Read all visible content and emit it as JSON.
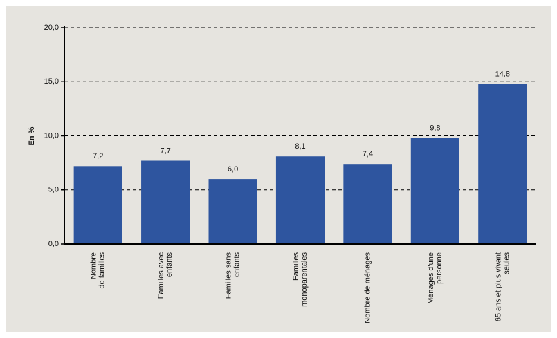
{
  "chart_data": {
    "type": "bar",
    "y_axis_label": "En %",
    "categories": [
      "Nombre\nde familles",
      "Familles avec\nenfants",
      "Familles sans\nenfants",
      "Familles\nmonoparentales",
      "Nombre de ménages",
      "Ménages d'une\npersonne",
      "65 ans et plus vivant\nseules"
    ],
    "values": [
      7.2,
      7.7,
      6.0,
      8.1,
      7.4,
      9.8,
      14.8
    ],
    "value_labels": [
      "7,2",
      "7,7",
      "6,0",
      "8,1",
      "7,4",
      "9,8",
      "14,8"
    ],
    "color": "#2e559f",
    "ylim": [
      0,
      20
    ],
    "yticks": [
      {
        "value": 0,
        "label": "0,0"
      },
      {
        "value": 5,
        "label": "5,0"
      },
      {
        "value": 10,
        "label": "10,0"
      },
      {
        "value": 15,
        "label": "15,0"
      },
      {
        "value": 20,
        "label": "20,0"
      }
    ],
    "grid": true
  }
}
